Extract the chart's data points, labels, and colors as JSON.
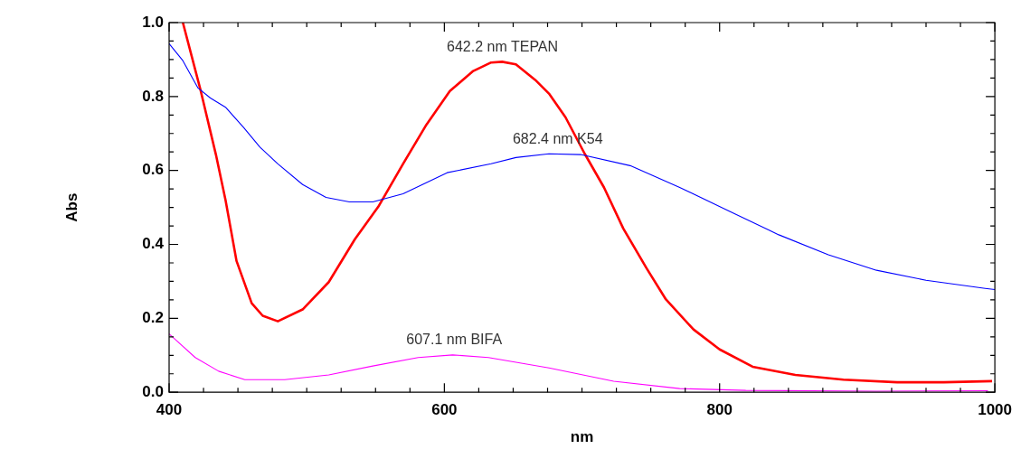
{
  "chart_data": {
    "type": "line",
    "xlabel": "nm",
    "ylabel": "Abs",
    "xlim": [
      400,
      1000
    ],
    "ylim": [
      0,
      1
    ],
    "xticks": [
      400,
      {
        "value": 425,
        "label": null
      },
      {
        "value": 450,
        "label": null
      },
      {
        "value": 475,
        "label": null
      },
      {
        "value": 500,
        "label": null
      },
      {
        "value": 525,
        "label": null
      },
      {
        "value": 550,
        "label": null
      },
      {
        "value": 575,
        "label": null
      },
      600,
      {
        "value": 625,
        "label": null
      },
      {
        "value": 650,
        "label": null
      },
      {
        "value": 675,
        "label": null
      },
      {
        "value": 700,
        "label": null
      },
      {
        "value": 725,
        "label": null
      },
      {
        "value": 750,
        "label": null
      },
      {
        "value": 775,
        "label": null
      },
      800,
      {
        "value": 825,
        "label": null
      },
      {
        "value": 850,
        "label": null
      },
      {
        "value": 875,
        "label": null
      },
      {
        "value": 900,
        "label": null
      },
      {
        "value": 925,
        "label": null
      },
      {
        "value": 950,
        "label": null
      },
      {
        "value": 975,
        "label": null
      },
      1000
    ],
    "yticks": [
      {
        "value": 0,
        "label": "0.0"
      },
      {
        "value": 0.05,
        "label": null
      },
      {
        "value": 0.1,
        "label": null
      },
      {
        "value": 0.15,
        "label": null
      },
      0.2,
      {
        "value": 0.25,
        "label": null
      },
      {
        "value": 0.3,
        "label": null
      },
      {
        "value": 0.35,
        "label": null
      },
      0.4,
      {
        "value": 0.45,
        "label": null
      },
      {
        "value": 0.5,
        "label": null
      },
      {
        "value": 0.55,
        "label": null
      },
      0.6,
      {
        "value": 0.65,
        "label": null
      },
      {
        "value": 0.7,
        "label": null
      },
      {
        "value": 0.75,
        "label": null
      },
      0.8,
      {
        "value": 0.85,
        "label": null
      },
      {
        "value": 0.9,
        "label": null
      },
      {
        "value": 0.95,
        "label": null
      },
      {
        "value": 1,
        "label": "1.0"
      }
    ],
    "grid": false,
    "legend": false,
    "marker": "none",
    "line_style": "solid",
    "series": [
      {
        "color": "#0000ff",
        "x": [
          400,
          410,
          421,
          430,
          441,
          454,
          466,
          479,
          497,
          514,
          531,
          548,
          570,
          602,
          634,
          652,
          676,
          699,
          735,
          771,
          807,
          843,
          879,
          914,
          950,
          993,
          1000
        ],
        "values": [
          0.943,
          0.897,
          0.823,
          0.796,
          0.771,
          0.717,
          0.663,
          0.618,
          0.562,
          0.527,
          0.515,
          0.515,
          0.537,
          0.594,
          0.618,
          0.635,
          0.645,
          0.643,
          0.613,
          0.554,
          0.49,
          0.426,
          0.372,
          0.33,
          0.303,
          0.281,
          0.278
        ]
      },
      {
        "color": "#ff00ff",
        "x": [
          400,
          419,
          436,
          455,
          484,
          516,
          548,
          581,
          606,
          632,
          676,
          723,
          771,
          819,
          914,
          995
        ],
        "values": [
          0.158,
          0.094,
          0.057,
          0.034,
          0.034,
          0.047,
          0.071,
          0.094,
          0.101,
          0.094,
          0.066,
          0.03,
          0.01,
          0.005,
          0.003,
          0.004
        ]
      },
      {
        "color": "#ff0000",
        "x": [
          410,
          423,
          434,
          441,
          449,
          460,
          468,
          479,
          497,
          516,
          535,
          552,
          570,
          587,
          604,
          621,
          634,
          642,
          652,
          666,
          676,
          688,
          702,
          716,
          730,
          747,
          761,
          781,
          800,
          824,
          855,
          890,
          929,
          963,
          998
        ],
        "values": [
          1,
          0.815,
          0.643,
          0.52,
          0.355,
          0.241,
          0.207,
          0.192,
          0.224,
          0.298,
          0.414,
          0.502,
          0.618,
          0.724,
          0.815,
          0.869,
          0.892,
          0.894,
          0.887,
          0.845,
          0.808,
          0.744,
          0.645,
          0.554,
          0.443,
          0.335,
          0.251,
          0.17,
          0.116,
          0.069,
          0.047,
          0.034,
          0.027,
          0.027,
          0.03
        ]
      }
    ],
    "annotations": [
      {
        "text": "642.2 nm TEPAN",
        "x": 642.2,
        "y": 0.894
      },
      {
        "text": "682.4 nm K54",
        "x": 682.4,
        "y": 0.645
      },
      {
        "text": "607.1 nm BIFA",
        "x": 607.1,
        "y": 0.101
      }
    ]
  }
}
